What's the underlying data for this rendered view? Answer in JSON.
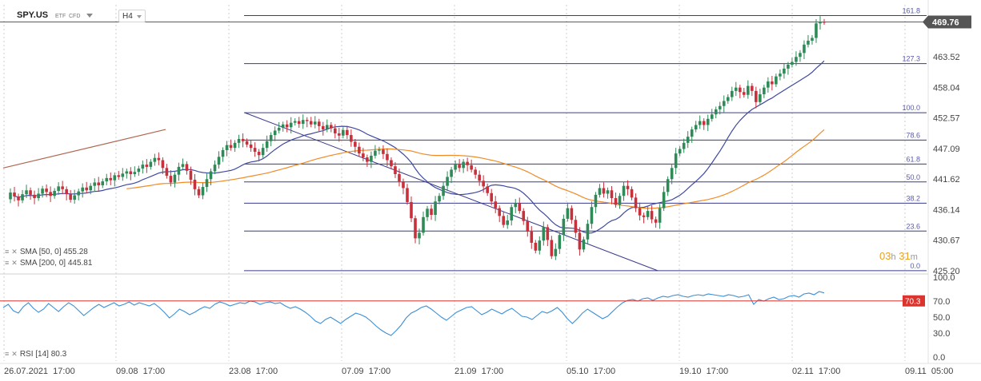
{
  "header": {
    "symbol": "SPY.US",
    "tag1": "ETF",
    "tag2": "CFD",
    "timeframe": "H4"
  },
  "indicators": {
    "sma50": "SMA [50, 0] 455.28",
    "sma200": "SMA [200, 0] 445.81",
    "rsi": "RSI [14] 80.3"
  },
  "countdown": {
    "hours": "03",
    "h": "h",
    "minutes": "31",
    "m": "m"
  },
  "colors": {
    "up": "#2e8b57",
    "down": "#c8303c",
    "sma50": "#3f4aa0",
    "sma200": "#f08c28",
    "rsi": "#3b8fd6",
    "fib": "#3a3a8c",
    "price_tag": "#555555",
    "rsi_tag": "#d9352e",
    "trend_up": "#b06650"
  },
  "chart_data": {
    "type": "candlestick",
    "price_axis": {
      "ticks": [
        "463.52",
        "458.04",
        "452.57",
        "447.09",
        "441.62",
        "436.14",
        "430.67",
        "425.20"
      ],
      "range": [
        424.9,
        471.4
      ],
      "last_price": "469.76"
    },
    "rsi_axis": {
      "ticks": [
        "100.0",
        "70.0",
        "50.0",
        "30.0",
        "0.0"
      ],
      "range": [
        0,
        100
      ],
      "level": "70.3",
      "last": 80.3
    },
    "x_labels": [
      "26.07.2021  17:00",
      "09.08  17:00",
      "23.08  17:00",
      "07.09  17:00",
      "21.09  17:00",
      "05.10  17:00",
      "19.10  17:00",
      "02.11  17:00",
      "09.11  05:00"
    ],
    "fibonacci": {
      "levels": [
        {
          "label": "161.8",
          "price": 470.9
        },
        {
          "label": "127.3",
          "price": 462.3
        },
        {
          "label": "100.0",
          "price": 453.5
        },
        {
          "label": "78.6",
          "price": 448.6
        },
        {
          "label": "61.8",
          "price": 444.3
        },
        {
          "label": "50.0",
          "price": 441.1
        },
        {
          "label": "38.2",
          "price": 437.3
        },
        {
          "label": "23.6",
          "price": 432.3
        },
        {
          "label": "0.0",
          "price": 425.2
        }
      ]
    },
    "sma50_value": 455.28,
    "sma200_value": 445.81,
    "rsi_value": 80.3,
    "closes": [
      438,
      439.2,
      438.5,
      437.8,
      438.9,
      439.6,
      438.8,
      438.2,
      439.0,
      439.9,
      439.3,
      438.6,
      439.5,
      440.3,
      439.8,
      438.9,
      437.9,
      438.7,
      439.4,
      440.1,
      439.6,
      440.4,
      441.0,
      440.5,
      441.2,
      441.8,
      441.4,
      442.3,
      442.0,
      442.6,
      443.0,
      442.5,
      442.9,
      443.5,
      444.2,
      443.8,
      444.7,
      445.4,
      445.0,
      443.6,
      442.2,
      441.0,
      442.4,
      443.8,
      444.3,
      443.1,
      441.5,
      439.8,
      438.7,
      440.2,
      441.6,
      443.0,
      444.2,
      445.6,
      446.8,
      447.7,
      447.2,
      448.1,
      448.8,
      448.4,
      447.8,
      447.2,
      446.5,
      445.9,
      447.2,
      448.4,
      449.5,
      450.3,
      450.8,
      451.4,
      450.9,
      451.7,
      452.0,
      451.5,
      452.2,
      452.0,
      451.4,
      451.9,
      451.1,
      450.5,
      451.3,
      450.7,
      449.8,
      449.4,
      450.4,
      449.5,
      448.3,
      447.4,
      446.2,
      445.5,
      444.7,
      445.8,
      446.7,
      446.9,
      446.1,
      445.0,
      443.9,
      442.5,
      441.2,
      440.0,
      437.5,
      434.6,
      431.0,
      432.0,
      434.8,
      436.3,
      435.2,
      437.6,
      438.6,
      440.4,
      442.0,
      443.3,
      444.2,
      443.6,
      444.7,
      444.1,
      443.3,
      442.4,
      441.3,
      440.3,
      439.1,
      437.6,
      436.4,
      435.0,
      433.4,
      434.2,
      436.6,
      437.3,
      435.9,
      434.1,
      432.2,
      430.2,
      428.8,
      430.6,
      433.0,
      430.7,
      427.8,
      429.1,
      431.6,
      434.5,
      436.4,
      434.3,
      432.0,
      429.0,
      430.8,
      433.6,
      436.6,
      438.8,
      440.0,
      439.0,
      439.6,
      438.2,
      437.0,
      438.6,
      440.4,
      439.8,
      438.3,
      436.4,
      435.1,
      434.8,
      435.9,
      434.4,
      433.8,
      436.4,
      439.3,
      441.6,
      443.6,
      446.2,
      447.0,
      448.1,
      449.2,
      450.5,
      451.3,
      452.0,
      451.3,
      452.4,
      453.2,
      454.1,
      454.7,
      455.6,
      456.3,
      457.4,
      458.0,
      457.2,
      456.7,
      458.3,
      457.4,
      455.4,
      456.8,
      458.0,
      459.1,
      458.6,
      460.0,
      460.5,
      461.4,
      462.1,
      462.6,
      463.5,
      464.2,
      465.7,
      466.4,
      466.9,
      469.5,
      469.8,
      469.76
    ],
    "rsi_values": [
      62,
      66,
      58,
      55,
      63,
      68,
      61,
      56,
      60,
      67,
      62,
      57,
      63,
      68,
      64,
      58,
      52,
      57,
      62,
      66,
      62,
      65,
      68,
      64,
      66,
      69,
      65,
      68,
      66,
      64,
      67,
      62,
      56,
      49,
      54,
      60,
      57,
      53,
      56,
      60,
      63,
      61,
      66,
      69,
      67,
      64,
      66,
      68,
      67,
      70,
      69,
      66,
      68,
      69,
      67,
      68,
      64,
      61,
      63,
      60,
      56,
      51,
      45,
      42,
      47,
      50,
      46,
      42,
      47,
      51,
      55,
      53,
      50,
      45,
      39,
      34,
      30,
      27,
      33,
      40,
      49,
      55,
      58,
      62,
      64,
      60,
      55,
      50,
      46,
      51,
      56,
      59,
      62,
      63,
      58,
      53,
      56,
      60,
      57,
      54,
      58,
      61,
      56,
      51,
      50,
      47,
      52,
      57,
      55,
      58,
      62,
      56,
      48,
      42,
      48,
      55,
      60,
      56,
      52,
      48,
      51,
      57,
      63,
      68,
      71,
      72,
      70,
      73,
      74,
      71,
      74,
      76,
      75,
      77,
      78,
      76,
      75,
      77,
      78,
      77,
      79,
      78,
      77,
      76,
      78,
      77,
      75,
      76,
      78,
      66,
      72,
      70,
      73,
      75,
      72,
      73,
      76,
      77,
      75,
      79,
      80,
      78,
      82,
      80.3
    ]
  }
}
